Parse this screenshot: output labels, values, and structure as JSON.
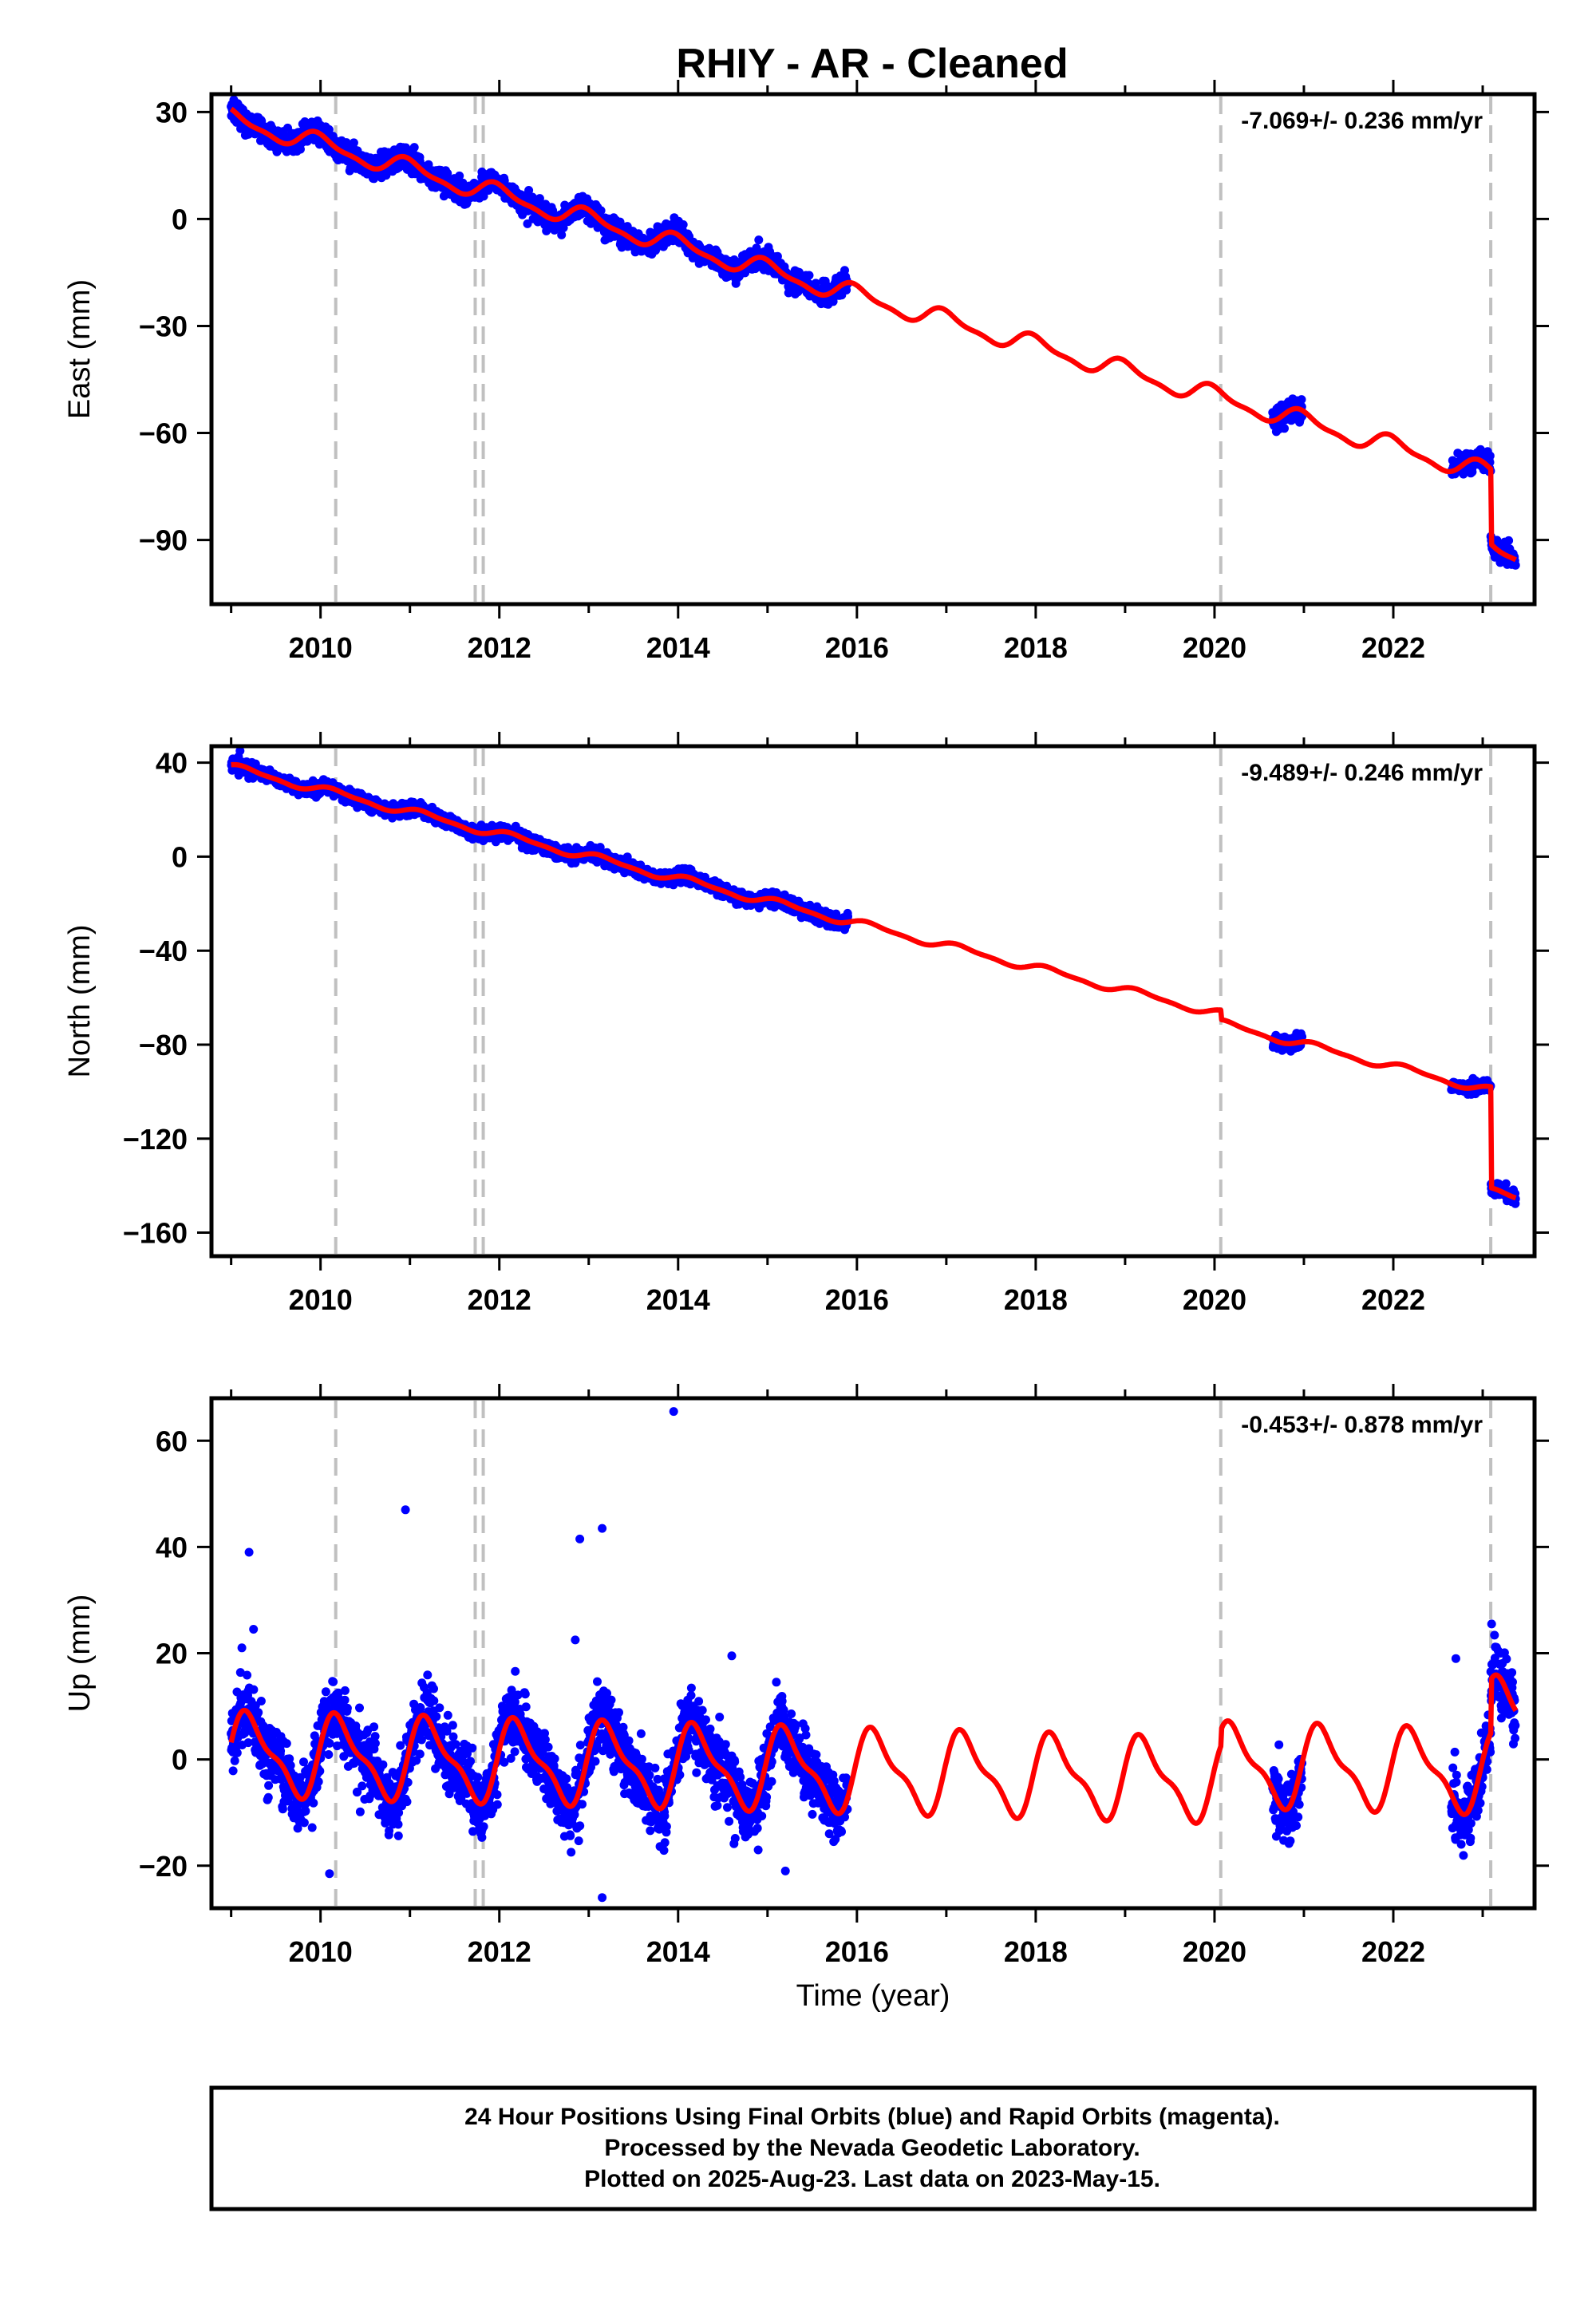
{
  "title": "RHIY  - AR - Cleaned",
  "footer": {
    "lines": [
      "24 Hour Positions Using Final Orbits (blue) and Rapid Orbits (magenta).",
      "Processed by the Nevada Geodetic Laboratory.",
      "Plotted on 2025-Aug-23. Last data on 2023-May-15."
    ]
  },
  "colors": {
    "data_points": "#0000ff",
    "model_fit": "#ff0000",
    "event_lines": "#c0c0c0",
    "frame": "#000000"
  },
  "chart_data": [
    {
      "type": "scatter",
      "panel": "east",
      "ylabel": "East (mm)",
      "xlabel": "",
      "rate_label": "-7.069+/- 0.236 mm/yr",
      "xlim": [
        2008.78,
        2023.58
      ],
      "ylim": [
        -108,
        35
      ],
      "xticks": [
        2010,
        2012,
        2014,
        2016,
        2018,
        2020,
        2022
      ],
      "yticks": [
        30,
        0,
        -30,
        -60,
        -90
      ],
      "ytick_labels": [
        "30",
        "0",
        "−30",
        "−60",
        "−90"
      ],
      "event_lines": [
        2010.17,
        2011.73,
        2011.82,
        2020.07,
        2023.09
      ],
      "data_segments": [
        [
          2009.0,
          2015.9
        ],
        [
          2020.65,
          2020.98
        ],
        [
          2022.65,
          2023.37
        ]
      ],
      "model": {
        "rate": -7.069,
        "offset_at_2009": 28,
        "seasonal_amp": 2.5,
        "seasonal_phase": 1.6,
        "offsets": [
          {
            "t": 2023.09,
            "dy": -21
          }
        ]
      },
      "point_noise": 2.0,
      "outliers": []
    },
    {
      "type": "scatter",
      "panel": "north",
      "ylabel": "North (mm)",
      "xlabel": "",
      "rate_label": "-9.489+/- 0.246 mm/yr",
      "xlim": [
        2008.78,
        2023.58
      ],
      "ylim": [
        -170,
        47
      ],
      "xticks": [
        2010,
        2012,
        2014,
        2016,
        2018,
        2020,
        2022
      ],
      "yticks": [
        40,
        0,
        -40,
        -80,
        -120,
        -160
      ],
      "ytick_labels": [
        "40",
        "0",
        "−40",
        "−80",
        "−120",
        "−160"
      ],
      "event_lines": [
        2010.17,
        2011.73,
        2011.82,
        2020.07,
        2023.09
      ],
      "data_segments": [
        [
          2009.0,
          2015.9
        ],
        [
          2020.65,
          2020.98
        ],
        [
          2022.65,
          2023.37
        ]
      ],
      "model": {
        "rate": -9.489,
        "offset_at_2009": 38,
        "seasonal_amp": 1.5,
        "seasonal_phase": 0.5,
        "offsets": [
          {
            "t": 2020.07,
            "dy": -4
          },
          {
            "t": 2023.09,
            "dy": -43
          }
        ]
      },
      "point_noise": 1.8,
      "outliers": [
        [
          2009.1,
          45
        ]
      ]
    },
    {
      "type": "scatter",
      "panel": "up",
      "ylabel": "Up (mm)",
      "xlabel": "Time (year)",
      "rate_label": "-0.453+/- 0.878 mm/yr",
      "xlim": [
        2008.78,
        2023.58
      ],
      "ylim": [
        -28,
        68
      ],
      "xticks": [
        2010,
        2012,
        2014,
        2016,
        2018,
        2020,
        2022
      ],
      "yticks": [
        60,
        40,
        20,
        0,
        -20
      ],
      "ytick_labels": [
        "60",
        "40",
        "20",
        "0",
        "−20"
      ],
      "event_lines": [
        2010.17,
        2011.73,
        2011.82,
        2020.07,
        2023.09
      ],
      "data_segments": [
        [
          2009.0,
          2015.9
        ],
        [
          2020.65,
          2020.98
        ],
        [
          2022.65,
          2023.37
        ]
      ],
      "model": {
        "rate": -0.453,
        "offset_at_2009": 1,
        "seasonal_amp": 7,
        "seasonal_phase": 0.2,
        "offsets": [
          {
            "t": 2020.07,
            "dy": 3
          },
          {
            "t": 2023.09,
            "dy": 10
          }
        ]
      },
      "point_noise": 4.2,
      "outliers": [
        [
          2009.2,
          39
        ],
        [
          2009.25,
          24.5
        ],
        [
          2009.12,
          21
        ],
        [
          2010.95,
          47
        ],
        [
          2012.9,
          41.5
        ],
        [
          2013.15,
          43.5
        ],
        [
          2012.85,
          22.5
        ],
        [
          2013.95,
          65.5
        ],
        [
          2014.6,
          19.5
        ],
        [
          2015.2,
          -21
        ],
        [
          2013.15,
          -26
        ],
        [
          2010.1,
          -21.5
        ],
        [
          2023.1,
          25.5
        ],
        [
          2023.2,
          20
        ],
        [
          2022.7,
          19
        ]
      ]
    }
  ]
}
